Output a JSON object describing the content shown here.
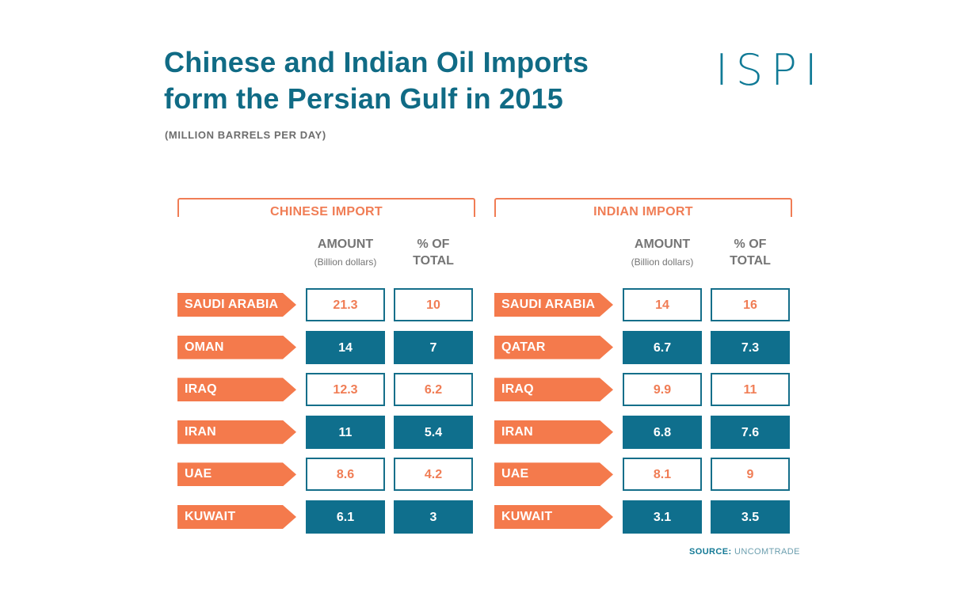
{
  "title_line1": "Chinese and Indian Oil Imports",
  "title_line2": "form the Persian Gulf in 2015",
  "subtitle": "(MILLION BARRELS PER DAY)",
  "logo": "ISPI",
  "source_label": "SOURCE:",
  "source_value": "UNCOMTRADE",
  "colors": {
    "teal": "#0f6f8d",
    "orange": "#f47a4c",
    "grey": "#757575"
  },
  "chart_data": [
    {
      "type": "table",
      "title": "CHINESE IMPORT",
      "columns": [
        {
          "label": "AMOUNT",
          "sublabel": "(Billion dollars)"
        },
        {
          "label": "% OF TOTAL",
          "sublabel": ""
        }
      ],
      "rows": [
        {
          "country": "SAUDI ARABIA",
          "amount": "21.3",
          "pct": "10"
        },
        {
          "country": "OMAN",
          "amount": "14",
          "pct": "7"
        },
        {
          "country": "IRAQ",
          "amount": "12.3",
          "pct": "6.2"
        },
        {
          "country": "IRAN",
          "amount": "11",
          "pct": "5.4"
        },
        {
          "country": "UAE",
          "amount": "8.6",
          "pct": "4.2"
        },
        {
          "country": "KUWAIT",
          "amount": "6.1",
          "pct": "3"
        }
      ]
    },
    {
      "type": "table",
      "title": "INDIAN IMPORT",
      "columns": [
        {
          "label": "AMOUNT",
          "sublabel": "(Billion dollars)"
        },
        {
          "label": "% OF TOTAL",
          "sublabel": ""
        }
      ],
      "rows": [
        {
          "country": "SAUDI ARABIA",
          "amount": "14",
          "pct": "16"
        },
        {
          "country": "QATAR",
          "amount": "6.7",
          "pct": "7.3"
        },
        {
          "country": "IRAQ",
          "amount": "9.9",
          "pct": "11"
        },
        {
          "country": "IRAN",
          "amount": "6.8",
          "pct": "7.6"
        },
        {
          "country": "UAE",
          "amount": "8.1",
          "pct": "9"
        },
        {
          "country": "KUWAIT",
          "amount": "3.1",
          "pct": "3.5"
        }
      ]
    }
  ]
}
